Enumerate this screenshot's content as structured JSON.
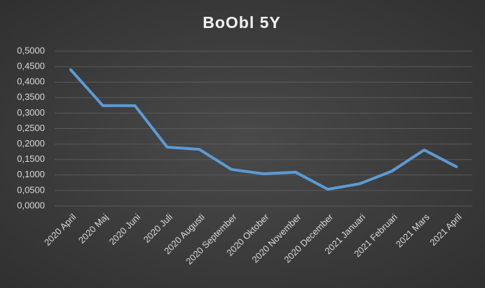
{
  "chart_data": {
    "type": "line",
    "title": "BoObl 5Y",
    "categories": [
      "2020 April",
      "2020 Maj",
      "2020 Juni",
      "2020 Juli",
      "2020 Augusti",
      "2020 September",
      "2020 Oktober",
      "2020 November",
      "2020 December",
      "2021 Januari",
      "2021 Februari",
      "2021 Mars",
      "2021 April"
    ],
    "values": [
      0.44,
      0.324,
      0.324,
      0.19,
      0.183,
      0.118,
      0.104,
      0.109,
      0.054,
      0.072,
      0.113,
      0.181,
      0.127
    ],
    "color": "#5b9bd5",
    "ylim": [
      0,
      0.5
    ],
    "yticks": [
      {
        "value": 0,
        "label": "0,0000"
      },
      {
        "value": 0.05,
        "label": "0,0500"
      },
      {
        "value": 0.1,
        "label": "0,1000"
      },
      {
        "value": 0.15,
        "label": "0,1500"
      },
      {
        "value": 0.2,
        "label": "0,2000"
      },
      {
        "value": 0.25,
        "label": "0,2500"
      },
      {
        "value": 0.3,
        "label": "0,3000"
      },
      {
        "value": 0.35,
        "label": "0,3500"
      },
      {
        "value": 0.4,
        "label": "0,4000"
      },
      {
        "value": 0.45,
        "label": "0,4500"
      },
      {
        "value": 0.5,
        "label": "0,5000"
      }
    ],
    "grid": true
  }
}
